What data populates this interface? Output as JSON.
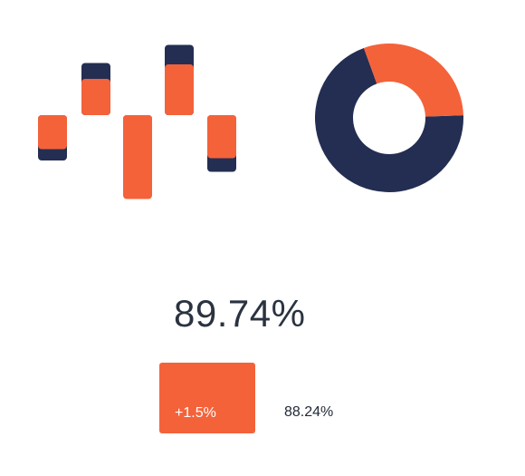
{
  "colors": {
    "orange": "#f4623a",
    "navy": "#232e52"
  },
  "chart_data": [
    {
      "type": "bar",
      "title": "",
      "categories": [
        "",
        "",
        "",
        "",
        ""
      ],
      "baseline": 0,
      "series": [
        {
          "color": "#232e52",
          "values": [
            -1.0,
            1.15,
            -0.75,
            1.55,
            -1.25
          ]
        },
        {
          "color": "#f4623a",
          "values": [
            -0.75,
            0.8,
            -1.85,
            1.12,
            -0.95
          ]
        }
      ],
      "ylim": [
        -2,
        1.6
      ],
      "grid": false
    },
    {
      "type": "pie",
      "title": "",
      "donut": true,
      "slices": [
        {
          "value": 70,
          "color": "#232e52"
        },
        {
          "value": 30,
          "color": "#f4623a"
        }
      ]
    }
  ],
  "kpi": {
    "value": "89.74%",
    "delta": "+1.5%",
    "previous": "88.24%"
  }
}
